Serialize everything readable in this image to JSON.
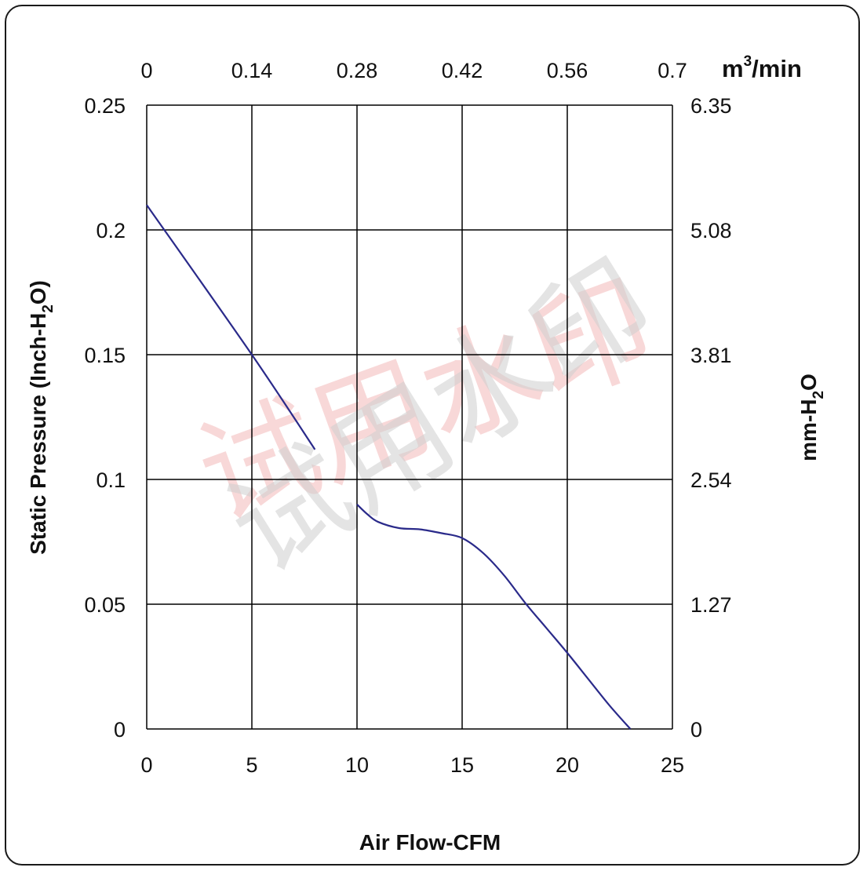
{
  "chart_data": {
    "type": "line",
    "xlabel": "Air Flow-CFM",
    "ylabel_left_pre": "Static Pressure (Inch-H",
    "ylabel_left_sub": "2",
    "ylabel_left_post": "O)",
    "ylabel_right_pre": "mm-H",
    "ylabel_right_sub": "2",
    "ylabel_right_post": "O",
    "top_axis_unit_pre": "m",
    "top_axis_unit_sup": "3",
    "top_axis_unit_post": "/min",
    "xlim": [
      0,
      25
    ],
    "ylim": [
      0,
      0.25
    ],
    "x_ticks": [
      "0",
      "5",
      "10",
      "15",
      "20",
      "25"
    ],
    "y_ticks_left": [
      "0",
      "0.05",
      "0.1",
      "0.15",
      "0.2",
      "0.25"
    ],
    "y_ticks_right": [
      "0",
      "1.27",
      "2.54",
      "3.81",
      "5.08",
      "6.35"
    ],
    "x_ticks_top": [
      "0",
      "0.14",
      "0.28",
      "0.42",
      "0.56",
      "0.7"
    ],
    "grid": true,
    "line_color": "#2a2a8a",
    "series": [
      {
        "segments": [
          [
            [
              0,
              0.21
            ],
            [
              5,
              0.15
            ],
            [
              8,
              0.112
            ]
          ],
          [
            [
              10,
              0.09
            ],
            [
              10.5,
              0.086
            ],
            [
              11,
              0.083
            ],
            [
              12,
              0.0805
            ],
            [
              13,
              0.08
            ],
            [
              14,
              0.0785
            ],
            [
              15,
              0.0765
            ],
            [
              16,
              0.0705
            ],
            [
              17,
              0.0615
            ],
            [
              18,
              0.0505
            ],
            [
              19,
              0.0405
            ],
            [
              20,
              0.0305
            ],
            [
              21,
              0.02
            ],
            [
              22,
              0.0095
            ],
            [
              23,
              0
            ]
          ]
        ]
      }
    ],
    "watermark": {
      "text": "试用水印",
      "colors": [
        "#f3b9b9",
        "#d2d2d2"
      ]
    }
  }
}
